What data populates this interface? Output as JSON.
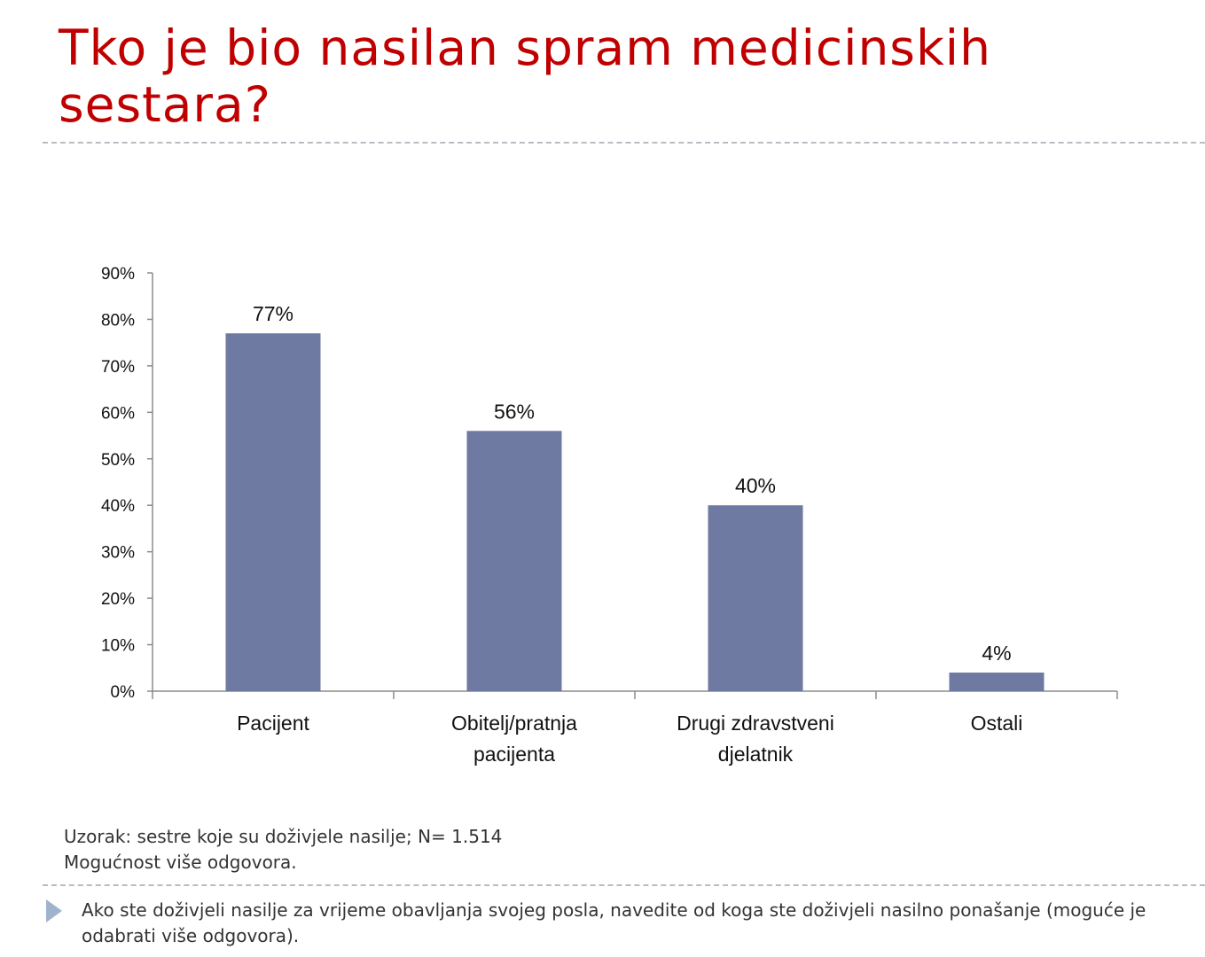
{
  "slide": {
    "title": "Tko je bio nasilan spram medicinskih sestara?",
    "sample_note": "Uzorak: sestre koje su doživjele nasilje; N= 1.514",
    "multi_note": "Mogućnost više odgovora.",
    "question": "Ako ste doživjeli nasilje za vrijeme obavljanja svojeg posla, navedite od koga ste doživjeli nasilno ponašanje (moguće je odabrati više odgovora).",
    "bullet_icon": "triangle-bullet-icon"
  },
  "chart_data": {
    "type": "bar",
    "title": "",
    "xlabel": "",
    "ylabel": "",
    "categories": [
      [
        "Pacijent"
      ],
      [
        "Obitelj/pratnja",
        "pacijenta"
      ],
      [
        "Drugi zdravstveni",
        "djelatnik"
      ],
      [
        "Ostali"
      ]
    ],
    "values": [
      77,
      56,
      40,
      4
    ],
    "data_labels": [
      "77%",
      "56%",
      "40%",
      "4%"
    ],
    "ylim": [
      0,
      90
    ],
    "yticks": [
      0,
      10,
      20,
      30,
      40,
      50,
      60,
      70,
      80,
      90
    ],
    "ytick_labels": [
      "0%",
      "10%",
      "20%",
      "30%",
      "40%",
      "50%",
      "60%",
      "70%",
      "80%",
      "90%"
    ],
    "grid": false,
    "legend": "none",
    "bar_color": "#6f7aa3",
    "axis_color": "#8c8c8c"
  }
}
